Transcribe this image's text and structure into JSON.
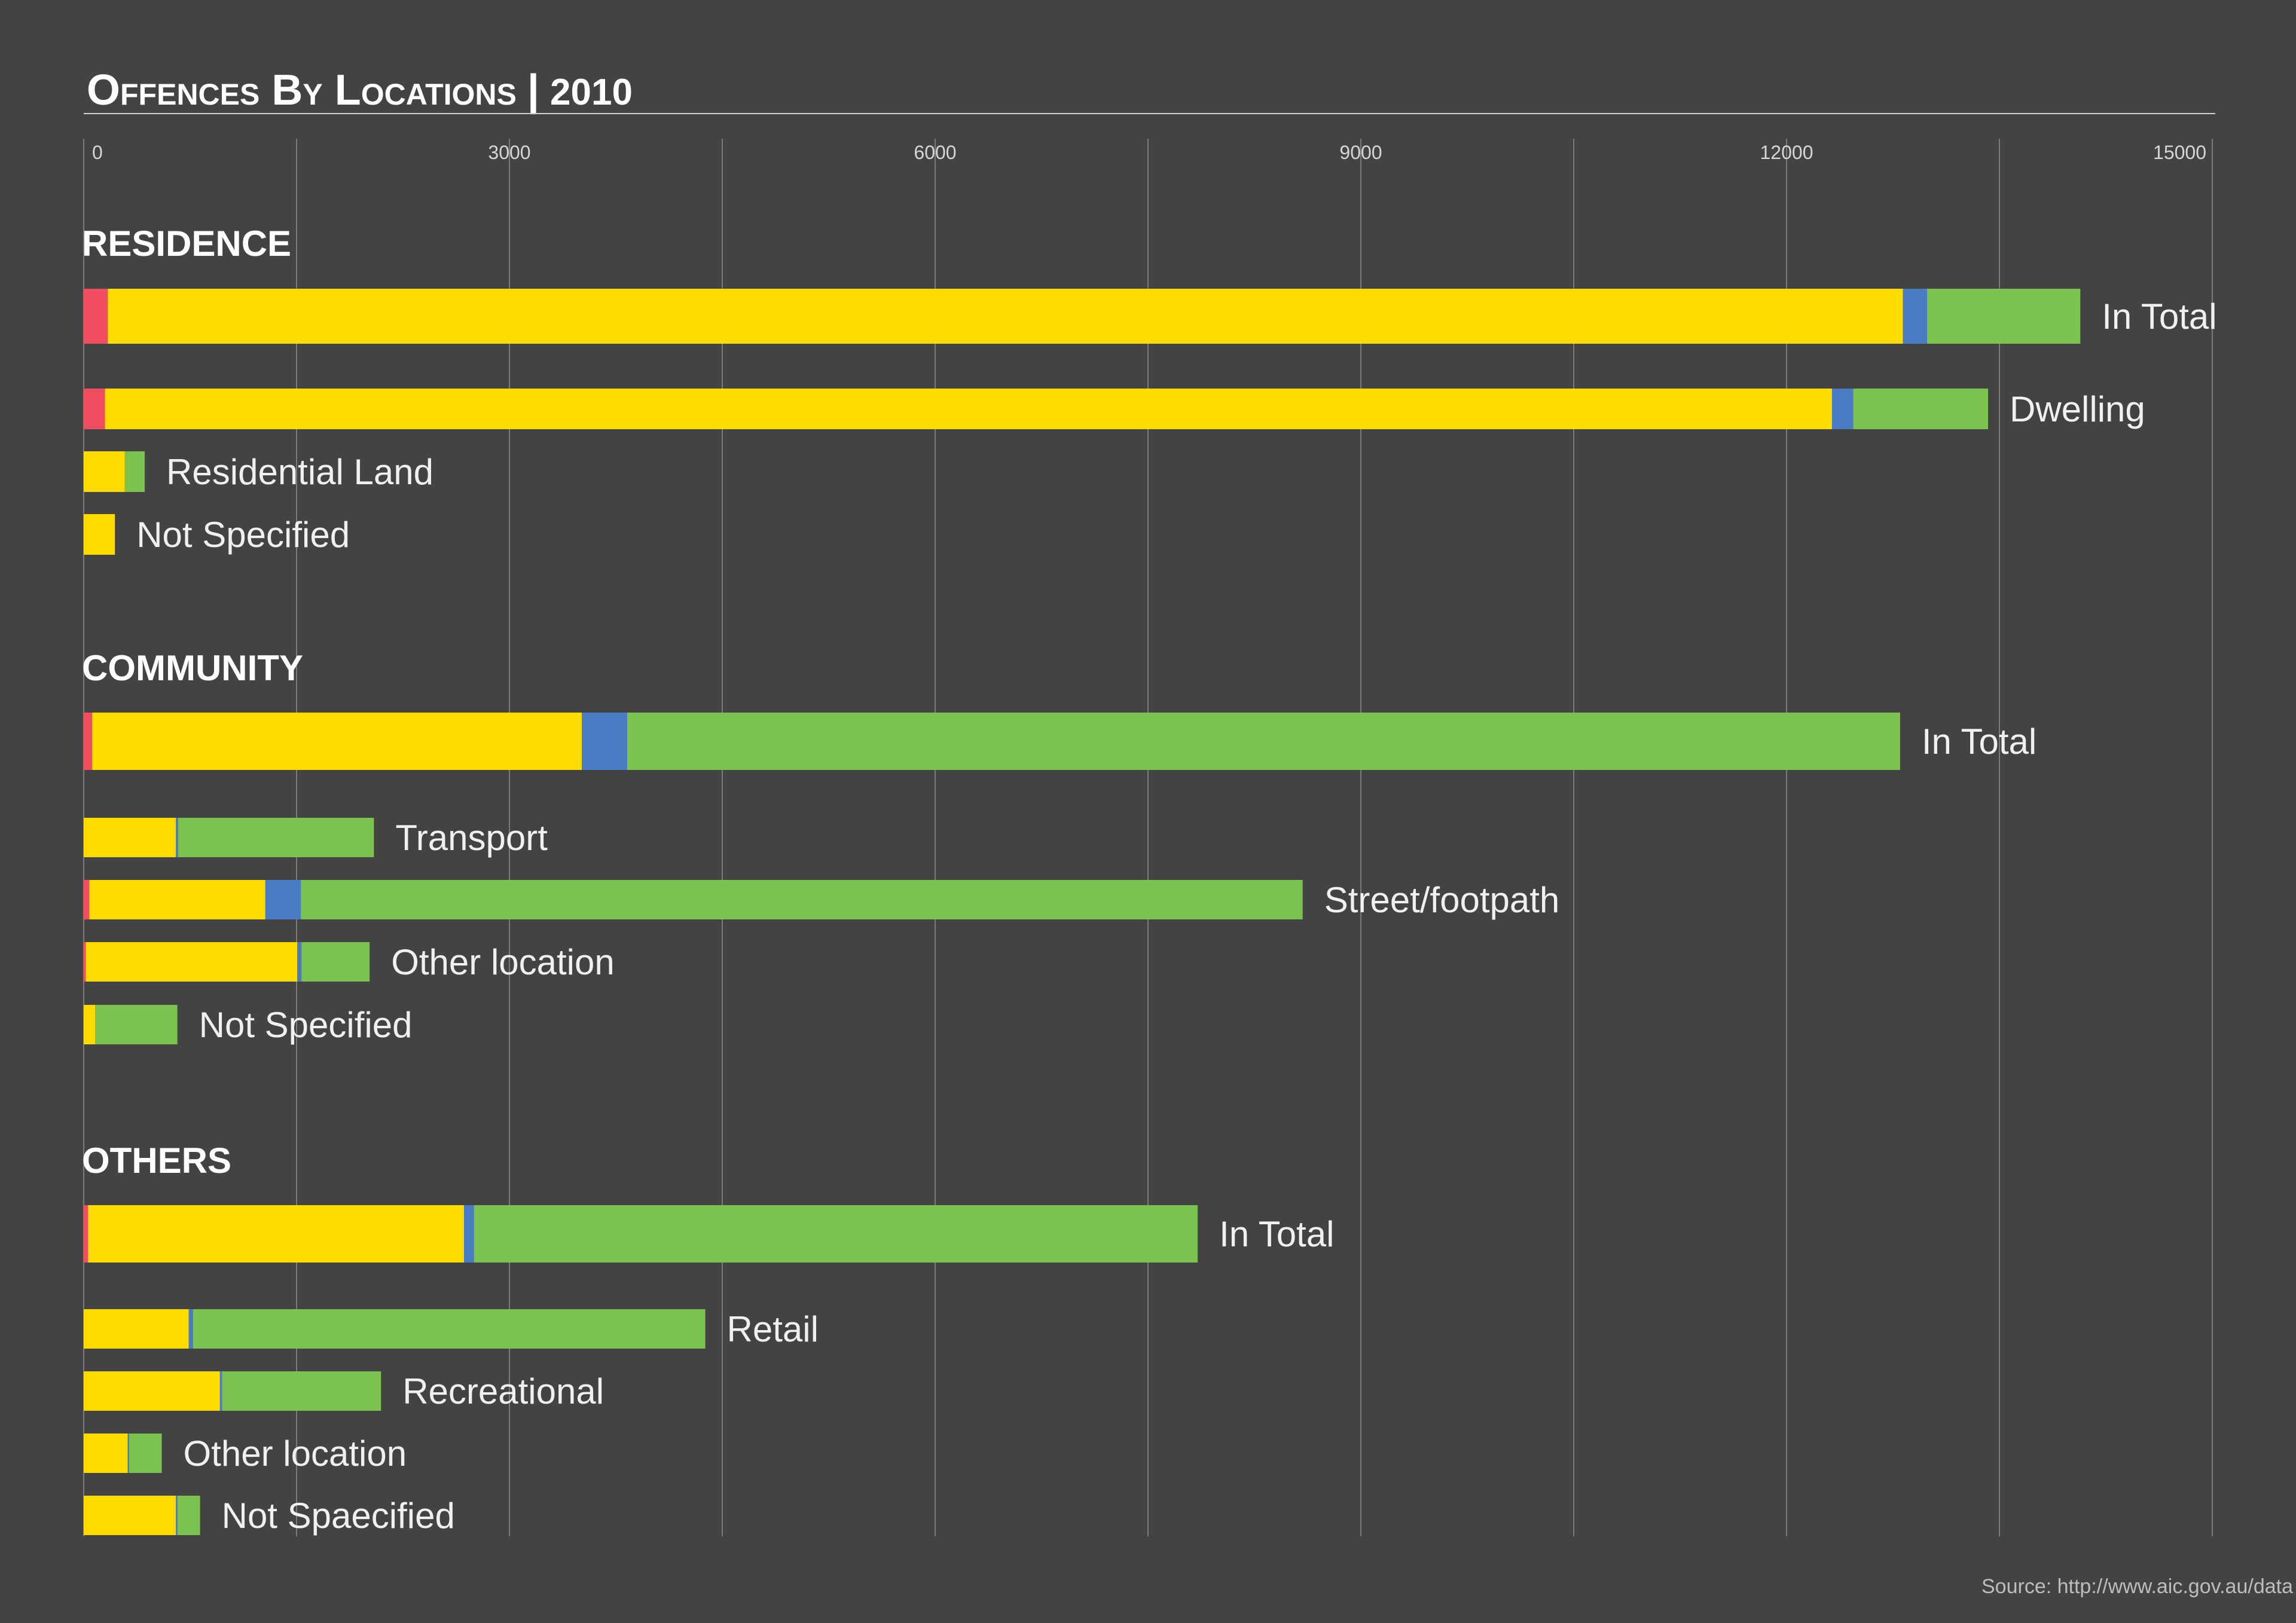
{
  "chart_data": {
    "type": "bar",
    "orientation": "horizontal",
    "stacked": true,
    "title": "Offences By Locations",
    "title_separator": "|",
    "year": "2010",
    "xlim": [
      0,
      15000
    ],
    "x_ticks": [
      "0",
      "3000",
      "6000",
      "9000",
      "12000",
      "15000"
    ],
    "grid": true,
    "segment_colors": [
      "#f14f5f",
      "#ffdc00",
      "#4a7cc4",
      "#7bc24f"
    ],
    "sections": [
      {
        "name": "RESIDENCE",
        "rows": [
          {
            "label": "In Total",
            "segments": [
              170,
              12650,
              170,
              1080
            ],
            "thick": true
          },
          {
            "label": "Dwelling",
            "segments": [
              150,
              12170,
              150,
              950
            ],
            "thick": false
          },
          {
            "label": "Residential Land",
            "segments": [
              0,
              290,
              0,
              140
            ],
            "thick": false
          },
          {
            "label": "Not Specified",
            "segments": [
              0,
              220,
              0,
              0
            ],
            "thick": false
          }
        ]
      },
      {
        "name": "COMMUNITY",
        "rows": [
          {
            "label": "In Total",
            "segments": [
              60,
              3450,
              320,
              8970
            ],
            "thick": true
          },
          {
            "label": "Transport",
            "segments": [
              0,
              650,
              15,
              1380
            ],
            "thick": false
          },
          {
            "label": "Street/footpath",
            "segments": [
              40,
              1240,
              250,
              7060
            ],
            "thick": false
          },
          {
            "label": "Other location",
            "segments": [
              15,
              1490,
              30,
              480
            ],
            "thick": false
          },
          {
            "label": "Not Specified",
            "segments": [
              0,
              80,
              0,
              580
            ],
            "thick": false
          }
        ]
      },
      {
        "name": "OTHERS",
        "rows": [
          {
            "label": "In Total",
            "segments": [
              30,
              2650,
              70,
              5100
            ],
            "thick": true
          },
          {
            "label": "Retail",
            "segments": [
              0,
              740,
              30,
              3610
            ],
            "thick": false
          },
          {
            "label": "Recreational",
            "segments": [
              0,
              960,
              15,
              1120
            ],
            "thick": false
          },
          {
            "label": "Other location",
            "segments": [
              0,
              310,
              10,
              230
            ],
            "thick": false
          },
          {
            "label": "Not Spaecified",
            "segments": [
              0,
              650,
              10,
              160
            ],
            "thick": false
          }
        ]
      }
    ],
    "source": "Source: http://www.aic.gov.au/data"
  }
}
